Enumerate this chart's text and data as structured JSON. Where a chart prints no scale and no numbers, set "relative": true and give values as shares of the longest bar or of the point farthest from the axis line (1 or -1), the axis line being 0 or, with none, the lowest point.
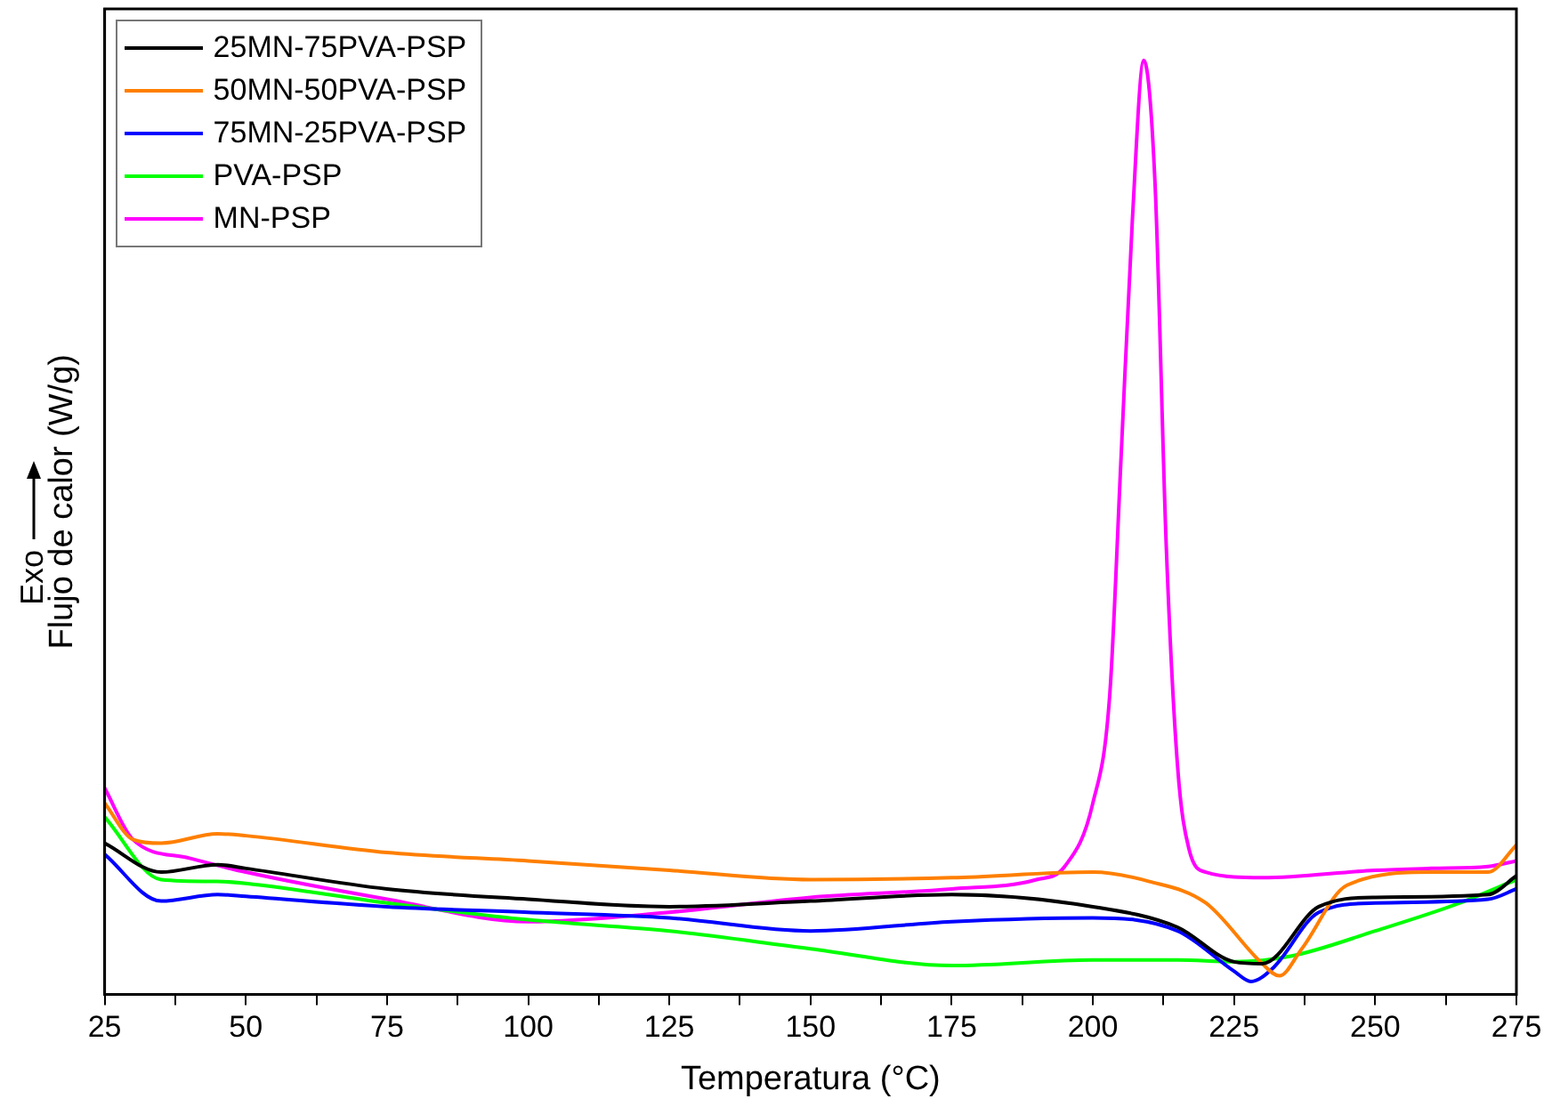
{
  "chart_data": {
    "type": "line",
    "relative": true,
    "xlabel": "Temperatura (°C)",
    "ylabel": "Flujo de calor (W/g)",
    "annotations": [
      "Exo"
    ],
    "legend": "top left",
    "grid": false,
    "marker": "none",
    "line_style": "solid",
    "xlim": [
      25,
      275
    ],
    "xticks": [
      25,
      {
        "value": 37.5,
        "label": null
      },
      50,
      {
        "value": 62.5,
        "label": null
      },
      75,
      {
        "value": 87.5,
        "label": null
      },
      100,
      {
        "value": 112.5,
        "label": null
      },
      125,
      {
        "value": 137.5,
        "label": null
      },
      150,
      {
        "value": 162.5,
        "label": null
      },
      175,
      {
        "value": 187.5,
        "label": null
      },
      200,
      {
        "value": 212.5,
        "label": null
      },
      225,
      {
        "value": 237.5,
        "label": null
      },
      250,
      {
        "value": 262.5,
        "label": null
      },
      275
    ],
    "series": [
      {
        "name": "25MN-75PVA-PSP",
        "color": "#000000",
        "x": [
          25,
          35,
          45,
          50,
          75,
          100,
          125,
          150,
          175,
          200,
          215,
          225,
          230,
          240,
          250,
          270,
          275
        ],
        "values": [
          0.162,
          0.131,
          0.139,
          0.135,
          0.113,
          0.102,
          0.094,
          0.1,
          0.107,
          0.094,
          0.072,
          0.035,
          0.033,
          0.094,
          0.104,
          0.107,
          0.127
        ]
      },
      {
        "name": "50MN-50PVA-PSP",
        "color": "#ff7f00",
        "x": [
          25,
          30,
          35,
          45,
          50,
          75,
          100,
          125,
          150,
          175,
          200,
          210,
          220,
          230,
          233,
          237,
          245,
          260,
          270,
          275
        ],
        "values": [
          0.205,
          0.166,
          0.162,
          0.172,
          0.17,
          0.152,
          0.143,
          0.133,
          0.123,
          0.125,
          0.131,
          0.121,
          0.098,
          0.033,
          0.02,
          0.049,
          0.117,
          0.131,
          0.131,
          0.16
        ]
      },
      {
        "name": "75MN-25PVA-PSP",
        "color": "#0000ff",
        "x": [
          25,
          35,
          45,
          50,
          75,
          100,
          125,
          150,
          175,
          200,
          215,
          225,
          228,
          232,
          240,
          250,
          270,
          275
        ],
        "values": [
          0.15,
          0.1,
          0.107,
          0.105,
          0.094,
          0.088,
          0.082,
          0.068,
          0.078,
          0.082,
          0.068,
          0.025,
          0.014,
          0.029,
          0.088,
          0.098,
          0.102,
          0.113
        ]
      },
      {
        "name": "PVA-PSP",
        "color": "#00ff00",
        "x": [
          25,
          35,
          45,
          50,
          75,
          100,
          125,
          150,
          175,
          200,
          215,
          225,
          235,
          250,
          265,
          275
        ],
        "values": [
          0.19,
          0.123,
          0.121,
          0.119,
          0.098,
          0.08,
          0.068,
          0.049,
          0.031,
          0.037,
          0.037,
          0.035,
          0.041,
          0.068,
          0.098,
          0.123
        ]
      },
      {
        "name": "MN-PSP",
        "color": "#ff00ff",
        "x": [
          25,
          30,
          40,
          50,
          75,
          100,
          125,
          150,
          175,
          190,
          195,
          200,
          203,
          205,
          207,
          209,
          211,
          213,
          215,
          217,
          220,
          230,
          250,
          260,
          270,
          275
        ],
        "values": [
          0.221,
          0.166,
          0.146,
          0.131,
          0.102,
          0.078,
          0.088,
          0.104,
          0.113,
          0.123,
          0.137,
          0.205,
          0.322,
          0.576,
          0.83,
          1,
          0.869,
          0.479,
          0.244,
          0.156,
          0.131,
          0.125,
          0.133,
          0.135,
          0.137,
          0.143
        ]
      }
    ]
  }
}
